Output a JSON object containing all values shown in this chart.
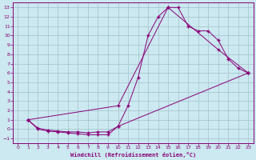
{
  "xlabel": "Windchill (Refroidissement éolien,°C)",
  "background_color": "#cce8f0",
  "grid_color": "#a0c4cc",
  "line_color": "#880077",
  "xlim": [
    -0.5,
    23.5
  ],
  "ylim": [
    -1.5,
    13.5
  ],
  "xticks": [
    0,
    1,
    2,
    3,
    4,
    5,
    6,
    7,
    8,
    9,
    10,
    11,
    12,
    13,
    14,
    15,
    16,
    17,
    18,
    19,
    20,
    21,
    22,
    23
  ],
  "yticks": [
    -1,
    0,
    1,
    2,
    3,
    4,
    5,
    6,
    7,
    8,
    9,
    10,
    11,
    12,
    13
  ],
  "line1_x": [
    1,
    2,
    3,
    4,
    5,
    6,
    7,
    8,
    9,
    10,
    11,
    12,
    13,
    14,
    15,
    16,
    17,
    18,
    19,
    20,
    21,
    22,
    23
  ],
  "line1_y": [
    1,
    0,
    -0.2,
    -0.3,
    -0.4,
    -0.5,
    -0.6,
    -0.6,
    -0.6,
    0.3,
    2.5,
    5.5,
    10,
    12,
    13,
    13,
    11,
    10.5,
    10.5,
    9.5,
    7.5,
    6.5,
    6
  ],
  "line2_x": [
    1,
    2,
    3,
    4,
    5,
    6,
    7,
    8,
    9,
    10,
    23
  ],
  "line2_y": [
    1,
    0.1,
    -0.1,
    -0.2,
    -0.3,
    -0.3,
    -0.4,
    -0.3,
    -0.3,
    0.3,
    6
  ],
  "line3_x": [
    1,
    10,
    15,
    20,
    23
  ],
  "line3_y": [
    1,
    2.5,
    13,
    8.5,
    6
  ]
}
